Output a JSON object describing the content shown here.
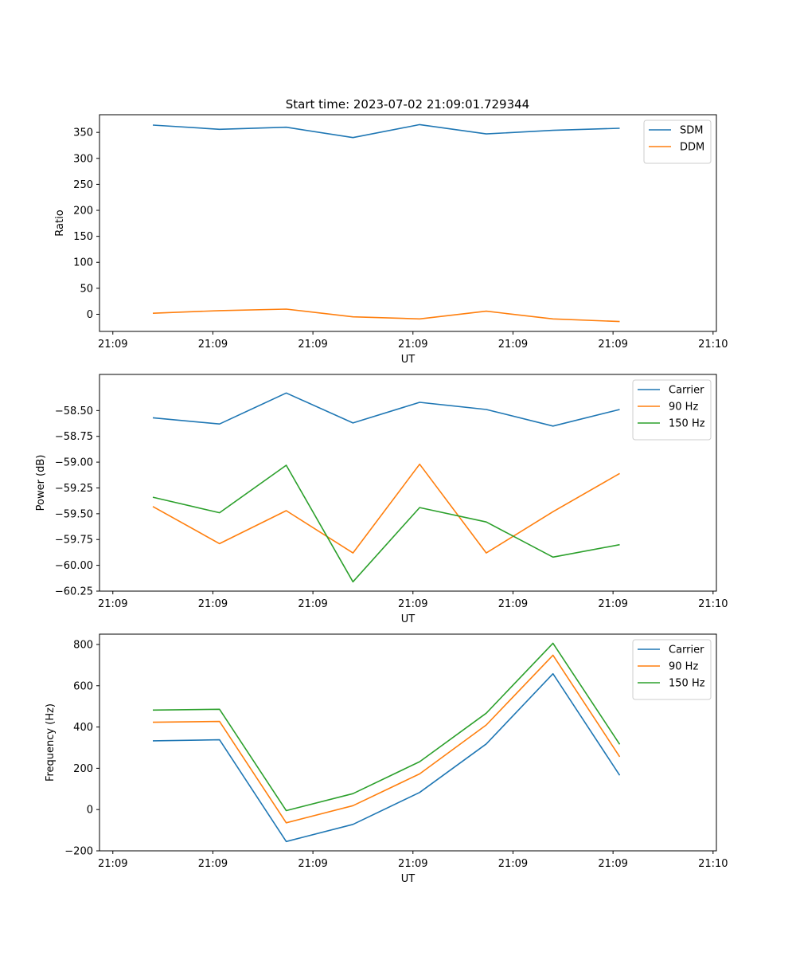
{
  "figure": {
    "title": "Start time: 2023-07-02 21:09:01.729344"
  },
  "x_tick_labels": [
    "21:09",
    "21:09",
    "21:09",
    "21:09",
    "21:09",
    "21:09",
    "21:10"
  ],
  "chart_data": [
    {
      "type": "line",
      "title": "Start time: 2023-07-02 21:09:01.729344",
      "xlabel": "UT",
      "ylabel": "Ratio",
      "x": [
        1,
        2,
        3,
        4,
        5,
        6,
        7,
        8
      ],
      "xlim": [
        0.2,
        9.45
      ],
      "ylim": [
        -33,
        384
      ],
      "yticks": [
        0,
        50,
        100,
        150,
        200,
        250,
        300,
        350
      ],
      "ytick_labels": [
        "0",
        "50",
        "100",
        "150",
        "200",
        "250",
        "300",
        "350"
      ],
      "legend_position": "top-right",
      "series": [
        {
          "name": "SDM",
          "color": "#1f77b4",
          "values": [
            364,
            356,
            360,
            340,
            365,
            347,
            354,
            358
          ]
        },
        {
          "name": "DDM",
          "color": "#ff7f0e",
          "values": [
            2,
            7,
            10,
            -5,
            -9,
            6,
            -9,
            -14
          ]
        }
      ]
    },
    {
      "type": "line",
      "title": "",
      "xlabel": "UT",
      "ylabel": "Power (dB)",
      "x": [
        1,
        2,
        3,
        4,
        5,
        6,
        7,
        8
      ],
      "xlim": [
        0.2,
        9.45
      ],
      "ylim": [
        -60.25,
        -58.15
      ],
      "yticks": [
        -60.25,
        -60.0,
        -59.75,
        -59.5,
        -59.25,
        -59.0,
        -58.75,
        -58.5
      ],
      "ytick_labels": [
        "−60.25",
        "−60.00",
        "−59.75",
        "−59.50",
        "−59.25",
        "−59.00",
        "−58.75",
        "−58.50"
      ],
      "legend_position": "top-right",
      "series": [
        {
          "name": "Carrier",
          "color": "#1f77b4",
          "values": [
            -58.57,
            -58.63,
            -58.33,
            -58.62,
            -58.42,
            -58.49,
            -58.65,
            -58.49
          ]
        },
        {
          "name": "90 Hz",
          "color": "#ff7f0e",
          "values": [
            -59.43,
            -59.79,
            -59.47,
            -59.88,
            -59.02,
            -59.88,
            -59.48,
            -59.11
          ]
        },
        {
          "name": "150 Hz",
          "color": "#2ca02c",
          "values": [
            -59.34,
            -59.49,
            -59.03,
            -60.16,
            -59.44,
            -59.58,
            -59.92,
            -59.8
          ]
        }
      ]
    },
    {
      "type": "line",
      "title": "",
      "xlabel": "UT",
      "ylabel": "Frequency (Hz)",
      "x": [
        1,
        2,
        3,
        4,
        5,
        6,
        7,
        8
      ],
      "xlim": [
        0.2,
        9.45
      ],
      "ylim": [
        -200,
        850
      ],
      "yticks": [
        -200,
        0,
        200,
        400,
        600,
        800
      ],
      "ytick_labels": [
        "−200",
        "0",
        "200",
        "400",
        "600",
        "800"
      ],
      "legend_position": "top-right",
      "series": [
        {
          "name": "Carrier",
          "color": "#1f77b4",
          "values": [
            333,
            338,
            -155,
            -72,
            83,
            318,
            658,
            166
          ]
        },
        {
          "name": "90 Hz",
          "color": "#ff7f0e",
          "values": [
            423,
            427,
            -64,
            19,
            173,
            410,
            748,
            256
          ]
        },
        {
          "name": "150 Hz",
          "color": "#2ca02c",
          "values": [
            482,
            486,
            -5,
            77,
            232,
            467,
            806,
            316
          ]
        }
      ]
    }
  ]
}
